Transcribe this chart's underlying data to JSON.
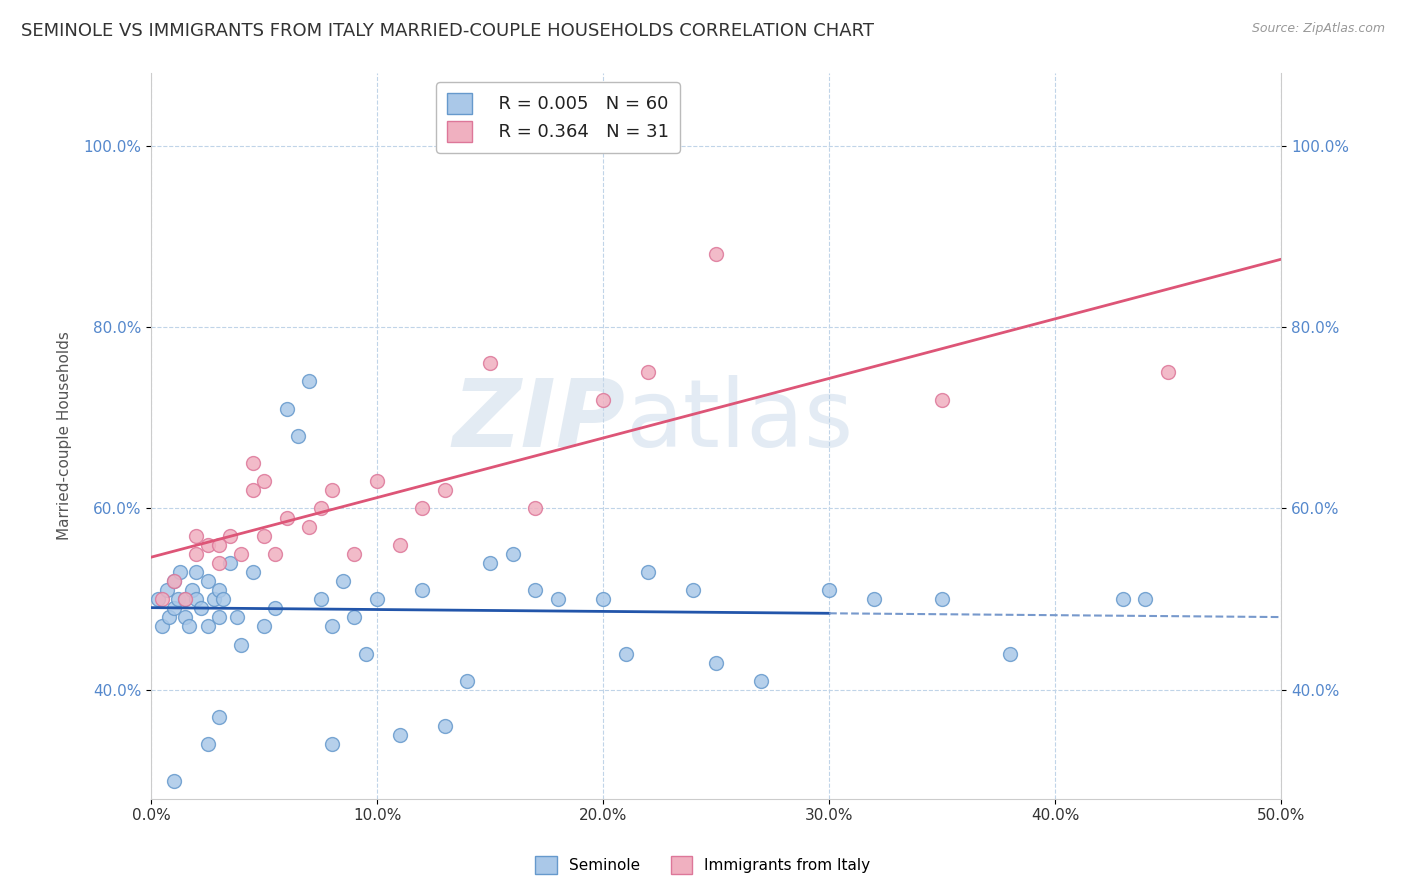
{
  "title": "SEMINOLE VS IMMIGRANTS FROM ITALY MARRIED-COUPLE HOUSEHOLDS CORRELATION CHART",
  "source": "Source: ZipAtlas.com",
  "xlim": [
    0.0,
    50.0
  ],
  "ylim": [
    28.0,
    108.0
  ],
  "watermark_zip": "ZIP",
  "watermark_atlas": "atlas",
  "legend_R1": "R = 0.005",
  "legend_N1": "N = 60",
  "legend_R2": "R = 0.364",
  "legend_N2": "N = 31",
  "series1_color": "#aac8e8",
  "series1_edge": "#6699cc",
  "series2_color": "#f0b0c0",
  "series2_edge": "#dd7799",
  "trendline1_color": "#2255aa",
  "trendline2_color": "#dd5577",
  "trendline1_dashed_color": "#7799cc",
  "background_color": "#ffffff",
  "grid_color": "#c0d4e8",
  "title_fontsize": 13,
  "axis_label_fontsize": 11,
  "tick_fontsize": 11,
  "dot_size": 100,
  "seminole_x": [
    0.3,
    0.5,
    0.7,
    0.8,
    1.0,
    1.0,
    1.2,
    1.3,
    1.5,
    1.5,
    1.7,
    1.8,
    2.0,
    2.0,
    2.2,
    2.5,
    2.5,
    2.8,
    3.0,
    3.0,
    3.2,
    3.5,
    3.8,
    4.0,
    4.5,
    5.0,
    5.5,
    6.0,
    6.5,
    7.0,
    7.5,
    8.0,
    8.5,
    9.0,
    9.5,
    10.0,
    11.0,
    12.0,
    13.0,
    14.0,
    15.0,
    16.0,
    17.0,
    18.0,
    20.0,
    21.0,
    22.0,
    24.0,
    25.0,
    27.0,
    30.0,
    32.0,
    35.0,
    38.0,
    43.0,
    44.0,
    1.0,
    2.5,
    3.0,
    8.0
  ],
  "seminole_y": [
    50.0,
    47.0,
    51.0,
    48.0,
    52.0,
    49.0,
    50.0,
    53.0,
    48.0,
    50.0,
    47.0,
    51.0,
    50.0,
    53.0,
    49.0,
    47.0,
    52.0,
    50.0,
    48.0,
    51.0,
    50.0,
    54.0,
    48.0,
    45.0,
    53.0,
    47.0,
    49.0,
    71.0,
    68.0,
    74.0,
    50.0,
    47.0,
    52.0,
    48.0,
    44.0,
    50.0,
    35.0,
    51.0,
    36.0,
    41.0,
    54.0,
    55.0,
    51.0,
    50.0,
    50.0,
    44.0,
    53.0,
    51.0,
    43.0,
    41.0,
    51.0,
    50.0,
    50.0,
    44.0,
    50.0,
    50.0,
    30.0,
    34.0,
    37.0,
    34.0
  ],
  "italy_x": [
    0.5,
    1.0,
    1.5,
    2.0,
    2.5,
    3.0,
    3.5,
    4.0,
    4.5,
    5.0,
    5.5,
    6.0,
    7.0,
    7.5,
    8.0,
    9.0,
    10.0,
    11.0,
    12.0,
    13.0,
    15.0,
    17.0,
    20.0,
    22.0,
    25.0,
    35.0,
    45.0,
    2.0,
    3.0,
    4.5,
    5.0
  ],
  "italy_y": [
    50.0,
    52.0,
    50.0,
    55.0,
    56.0,
    54.0,
    57.0,
    55.0,
    62.0,
    57.0,
    55.0,
    59.0,
    58.0,
    60.0,
    62.0,
    55.0,
    63.0,
    56.0,
    60.0,
    62.0,
    76.0,
    60.0,
    72.0,
    75.0,
    88.0,
    72.0,
    75.0,
    57.0,
    56.0,
    65.0,
    63.0
  ],
  "trendline1_solid_xmax": 30.0
}
